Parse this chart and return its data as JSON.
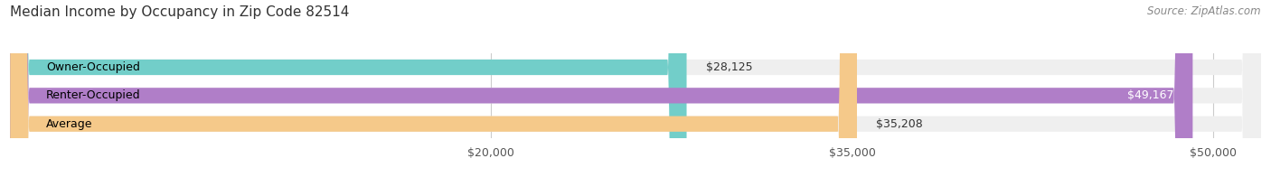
{
  "title": "Median Income by Occupancy in Zip Code 82514",
  "source": "Source: ZipAtlas.com",
  "categories": [
    "Owner-Occupied",
    "Renter-Occupied",
    "Average"
  ],
  "values": [
    28125,
    49167,
    35208
  ],
  "bar_colors": [
    "#72cec9",
    "#b07ec8",
    "#f5c98a"
  ],
  "bar_bg_color": "#efefef",
  "value_labels": [
    "$28,125",
    "$49,167",
    "$35,208"
  ],
  "x_tick_labels": [
    "$20,000",
    "$35,000",
    "$50,000"
  ],
  "x_tick_values": [
    20000,
    35000,
    50000
  ],
  "xlim": [
    0,
    52000
  ],
  "title_fontsize": 11,
  "source_fontsize": 8.5,
  "label_fontsize": 9,
  "tick_fontsize": 9,
  "bar_height": 0.55,
  "background_color": "#ffffff"
}
